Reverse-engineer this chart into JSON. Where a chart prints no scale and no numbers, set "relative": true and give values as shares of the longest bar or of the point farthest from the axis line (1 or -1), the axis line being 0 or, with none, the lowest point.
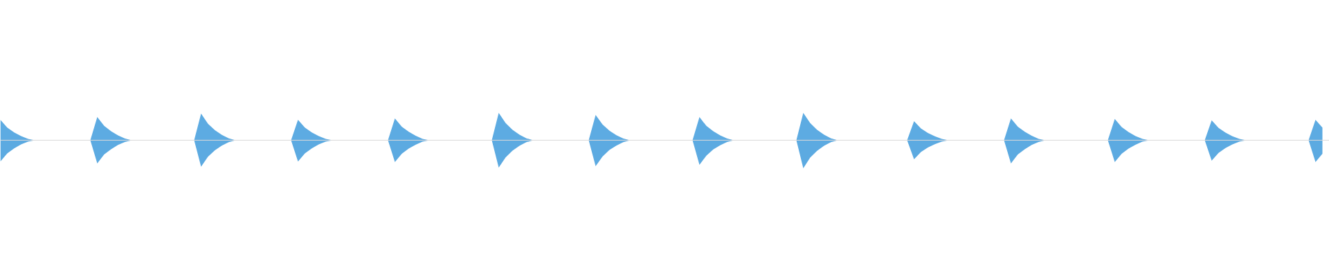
{
  "chart_data": {
    "type": "area",
    "relative": true,
    "categories": [
      null,
      null,
      null,
      null,
      null,
      null,
      null,
      null,
      null,
      null,
      null,
      null,
      null,
      null,
      null,
      null,
      null,
      null,
      null,
      null,
      null,
      null,
      null,
      null,
      null,
      null,
      null,
      null,
      null,
      null,
      null,
      null,
      null,
      null,
      null,
      null,
      null,
      null,
      null,
      null,
      null,
      null,
      null,
      null,
      null,
      null,
      null,
      null,
      null,
      null,
      null,
      null,
      null,
      null,
      null,
      null,
      null,
      null,
      null,
      null,
      null,
      null,
      null,
      null,
      null,
      null,
      null,
      null,
      null,
      null,
      null,
      null,
      null,
      null,
      null,
      null,
      null,
      null,
      null,
      null,
      null,
      null,
      null,
      null,
      null,
      null,
      null,
      null,
      null,
      null,
      null,
      null,
      null,
      null,
      null,
      null,
      null,
      null,
      null,
      null,
      null,
      null,
      null,
      null,
      null,
      null,
      null,
      null,
      null,
      null,
      null,
      null,
      null,
      null,
      null,
      null,
      null,
      null,
      null,
      null,
      null,
      null,
      null,
      null,
      null,
      null,
      null,
      null,
      null,
      null,
      null,
      null,
      null,
      null,
      null,
      null,
      null,
      null,
      null,
      null,
      null,
      null,
      null,
      null,
      null,
      null,
      null,
      null,
      null,
      null,
      null,
      null,
      null,
      null,
      null,
      null,
      null,
      null,
      null,
      null,
      null,
      null,
      null,
      null,
      null,
      null,
      null,
      null,
      null,
      null,
      null,
      null,
      null,
      null,
      null,
      null,
      null,
      null,
      null,
      null,
      null,
      null,
      null,
      null,
      null,
      null,
      null,
      null,
      null,
      null,
      null,
      null
    ],
    "series": [
      {
        "color": "#5dabe2",
        "values": [
          0.73,
          0.45,
          0.28,
          0.15,
          0.05,
          0,
          0,
          0,
          0,
          0,
          0,
          0,
          0,
          0,
          0.83,
          0.51,
          0.32,
          0.17,
          0.06,
          0,
          0,
          0,
          0,
          0,
          0,
          0,
          0,
          0,
          0,
          0.95,
          0.59,
          0.36,
          0.19,
          0.07,
          0,
          0,
          0,
          0,
          0,
          0,
          0,
          0,
          0,
          0.73,
          0.45,
          0.28,
          0.15,
          0.05,
          0,
          0,
          0,
          0,
          0,
          0,
          0,
          0,
          0,
          0.78,
          0.48,
          0.3,
          0.16,
          0.05,
          0,
          0,
          0,
          0,
          0,
          0,
          0,
          0,
          0,
          0,
          0.98,
          0.61,
          0.37,
          0.2,
          0.07,
          0,
          0,
          0,
          0,
          0,
          0,
          0,
          0,
          0,
          0.9,
          0.56,
          0.34,
          0.18,
          0.06,
          0,
          0,
          0,
          0,
          0,
          0,
          0,
          0,
          0,
          0,
          0.83,
          0.51,
          0.32,
          0.17,
          0.06,
          0,
          0,
          0,
          0,
          0,
          0,
          0,
          0,
          0,
          0,
          0.98,
          0.61,
          0.37,
          0.2,
          0.07,
          0,
          0,
          0,
          0,
          0,
          0,
          0,
          0,
          0,
          0,
          0,
          0.68,
          0.42,
          0.26,
          0.14,
          0.05,
          0,
          0,
          0,
          0,
          0,
          0,
          0,
          0,
          0,
          0.78,
          0.48,
          0.3,
          0.16,
          0.05,
          0,
          0,
          0,
          0,
          0,
          0,
          0,
          0,
          0,
          0,
          0.76,
          0.47,
          0.29,
          0.15,
          0.05,
          0,
          0,
          0,
          0,
          0,
          0,
          0,
          0,
          0,
          0.71,
          0.44,
          0.27,
          0.14,
          0.05,
          0,
          0,
          0,
          0,
          0,
          0,
          0,
          0,
          0,
          0,
          0.73,
          0.45
        ]
      },
      {
        "color": "#5caae1",
        "values": [
          -0.76,
          -0.47,
          -0.29,
          -0.15,
          -0.05,
          0,
          0,
          0,
          0,
          0,
          0,
          0,
          0,
          0,
          -0.83,
          -0.51,
          -0.32,
          -0.17,
          -0.06,
          0,
          0,
          0,
          0,
          0,
          0,
          0,
          0,
          0,
          0,
          -0.95,
          -0.59,
          -0.36,
          -0.19,
          -0.07,
          0,
          0,
          0,
          0,
          0,
          0,
          0,
          0,
          0,
          -0.76,
          -0.47,
          -0.29,
          -0.15,
          -0.05,
          0,
          0,
          0,
          0,
          0,
          0,
          0,
          0,
          0,
          -0.78,
          -0.48,
          -0.3,
          -0.16,
          -0.05,
          0,
          0,
          0,
          0,
          0,
          0,
          0,
          0,
          0,
          0,
          -0.98,
          -0.61,
          -0.37,
          -0.2,
          -0.07,
          0,
          0,
          0,
          0,
          0,
          0,
          0,
          0,
          0,
          -0.93,
          -0.58,
          -0.35,
          -0.19,
          -0.07,
          0,
          0,
          0,
          0,
          0,
          0,
          0,
          0,
          0,
          0,
          -0.88,
          -0.55,
          -0.33,
          -0.18,
          -0.06,
          0,
          0,
          0,
          0,
          0,
          0,
          0,
          0,
          0,
          0,
          -1,
          -0.62,
          -0.38,
          -0.2,
          -0.07,
          0,
          0,
          0,
          0,
          0,
          0,
          0,
          0,
          0,
          0,
          0,
          -0.68,
          -0.42,
          -0.26,
          -0.14,
          -0.05,
          0,
          0,
          0,
          0,
          0,
          0,
          0,
          0,
          0,
          -0.83,
          -0.51,
          -0.32,
          -0.17,
          -0.06,
          0,
          0,
          0,
          0,
          0,
          0,
          0,
          0,
          0,
          0,
          -0.78,
          -0.48,
          -0.3,
          -0.16,
          -0.05,
          0,
          0,
          0,
          0,
          0,
          0,
          0,
          0,
          0,
          -0.73,
          -0.45,
          -0.28,
          -0.15,
          -0.05,
          0,
          0,
          0,
          0,
          0,
          0,
          0,
          0,
          0,
          0,
          -0.78,
          -0.48
        ]
      }
    ]
  }
}
